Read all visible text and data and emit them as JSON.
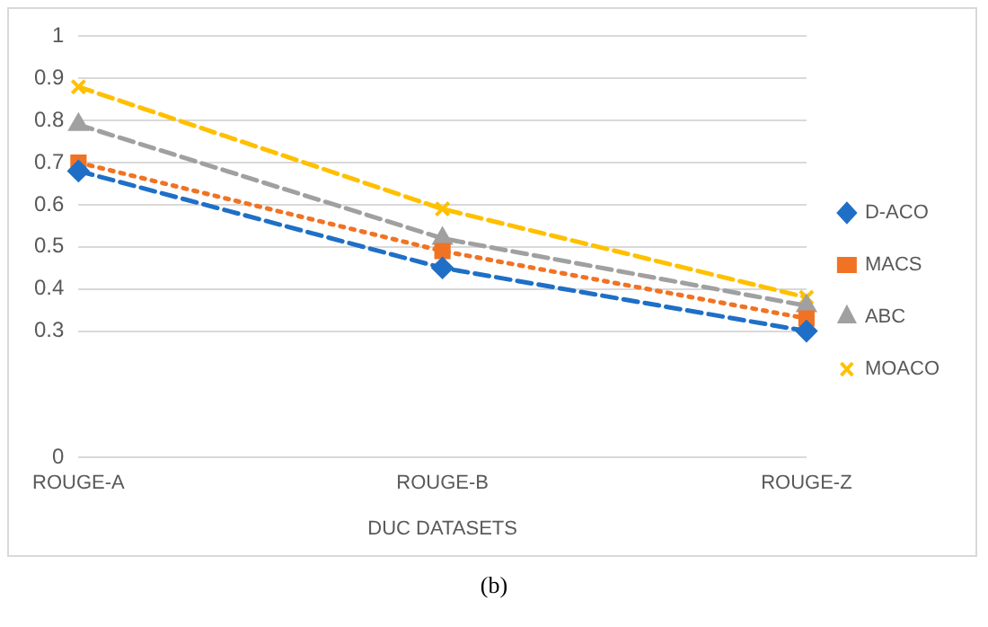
{
  "chart_data": {
    "type": "line",
    "xlabel": "DUC DATASETS",
    "categories": [
      "ROUGE-A",
      "ROUGE-B",
      "ROUGE-Z"
    ],
    "series": [
      {
        "name": "D-ACO",
        "color": "#1f6fc6",
        "values": [
          0.68,
          0.45,
          0.3
        ],
        "marker": "diamond",
        "line_style": "dashed"
      },
      {
        "name": "MACS",
        "color": "#f07324",
        "values": [
          0.7,
          0.49,
          0.33
        ],
        "marker": "square",
        "line_style": "dotted"
      },
      {
        "name": "ABC",
        "color": "#a0a0a0",
        "values": [
          0.79,
          0.52,
          0.36
        ],
        "marker": "triangle",
        "line_style": "dashed"
      },
      {
        "name": "MOACO",
        "color": "#ffc000",
        "values": [
          0.88,
          0.59,
          0.38
        ],
        "marker": "cross",
        "line_style": "dashed"
      }
    ],
    "ylim": [
      0,
      1
    ],
    "yticks": [
      0,
      0.3,
      0.4,
      0.5,
      0.6,
      0.7,
      0.8,
      0.9,
      1
    ],
    "grid": "y",
    "legend": "right",
    "annotations": [
      "(b)"
    ]
  }
}
